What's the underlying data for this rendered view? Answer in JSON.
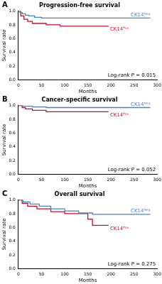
{
  "chart_data": [
    {
      "type": "line",
      "panel": "A",
      "title": "Progression-free survival",
      "x_label": "Months",
      "y_label": "Survival rate",
      "annotation": "Log-rank P = 0.015",
      "line_style": "step",
      "grid": false,
      "xlim": [
        0,
        300
      ],
      "xticks": [
        0,
        50,
        100,
        150,
        200,
        250,
        300
      ],
      "ylim": [
        0,
        1
      ],
      "yticks": [
        {
          "value": 0,
          "label": "0.0"
        },
        0.2,
        0.4,
        0.6,
        0.8,
        {
          "value": 1,
          "label": "1.0"
        }
      ],
      "series": [
        {
          "name": "CK14ᴺᵉᵍ",
          "color": "#4f81bd",
          "x": [
            0,
            3,
            8,
            15,
            22,
            35,
            50,
            285
          ],
          "values": [
            1,
            0.98,
            0.96,
            0.94,
            0.93,
            0.91,
            0.9,
            0.9
          ]
        },
        {
          "name": "CK14ᴾᵒˢ",
          "color": "#c8102e",
          "x": [
            0,
            5,
            12,
            20,
            30,
            60,
            90,
            195
          ],
          "values": [
            1,
            0.93,
            0.88,
            0.85,
            0.82,
            0.8,
            0.78,
            0.78
          ]
        }
      ]
    },
    {
      "type": "line",
      "panel": "B",
      "title": "Cancer-specific survival",
      "x_label": "Months",
      "y_label": "Survival rate",
      "annotation": "Log-rank P = 0.052",
      "line_style": "step",
      "grid": false,
      "xlim": [
        0,
        300
      ],
      "xticks": [
        0,
        50,
        100,
        150,
        200,
        250,
        300
      ],
      "ylim": [
        0,
        1
      ],
      "yticks": [
        {
          "value": 0,
          "label": "0.0"
        },
        0.2,
        0.4,
        0.6,
        0.8,
        {
          "value": 1,
          "label": "1.0"
        }
      ],
      "series": [
        {
          "name": "CK14ᴺᵉᵍ",
          "color": "#4f81bd",
          "x": [
            0,
            10,
            30,
            60,
            285
          ],
          "values": [
            1,
            0.99,
            0.98,
            0.97,
            0.97
          ]
        },
        {
          "name": "CK14ᴾᵒˢ",
          "color": "#c8102e",
          "x": [
            0,
            8,
            15,
            30,
            60,
            195
          ],
          "values": [
            1,
            0.97,
            0.95,
            0.93,
            0.91,
            0.91
          ]
        }
      ]
    },
    {
      "type": "line",
      "panel": "C",
      "title": "Overall survival",
      "x_label": "Months",
      "y_label": "Survival rate",
      "annotation": "Log-rank P = 0.275",
      "line_style": "step",
      "grid": false,
      "xlim": [
        0,
        300
      ],
      "xticks": [
        0,
        50,
        100,
        150,
        200,
        250,
        300
      ],
      "ylim": [
        0,
        1
      ],
      "yticks": [
        {
          "value": 0,
          "label": "0.0"
        },
        0.2,
        0.4,
        0.6,
        0.8,
        {
          "value": 1,
          "label": "1.0"
        }
      ],
      "series": [
        {
          "name": "CK14ᴺᵉᵍ",
          "color": "#4f81bd",
          "x": [
            0,
            10,
            25,
            45,
            70,
            100,
            130,
            160,
            285
          ],
          "values": [
            1,
            0.97,
            0.94,
            0.91,
            0.87,
            0.84,
            0.81,
            0.79,
            0.79
          ]
        },
        {
          "name": "CK14ᴾᵒˢ",
          "color": "#c8102e",
          "x": [
            0,
            8,
            20,
            40,
            70,
            100,
            150,
            160,
            195
          ],
          "values": [
            1,
            0.95,
            0.91,
            0.87,
            0.83,
            0.8,
            0.72,
            0.63,
            0.63
          ]
        }
      ]
    }
  ]
}
